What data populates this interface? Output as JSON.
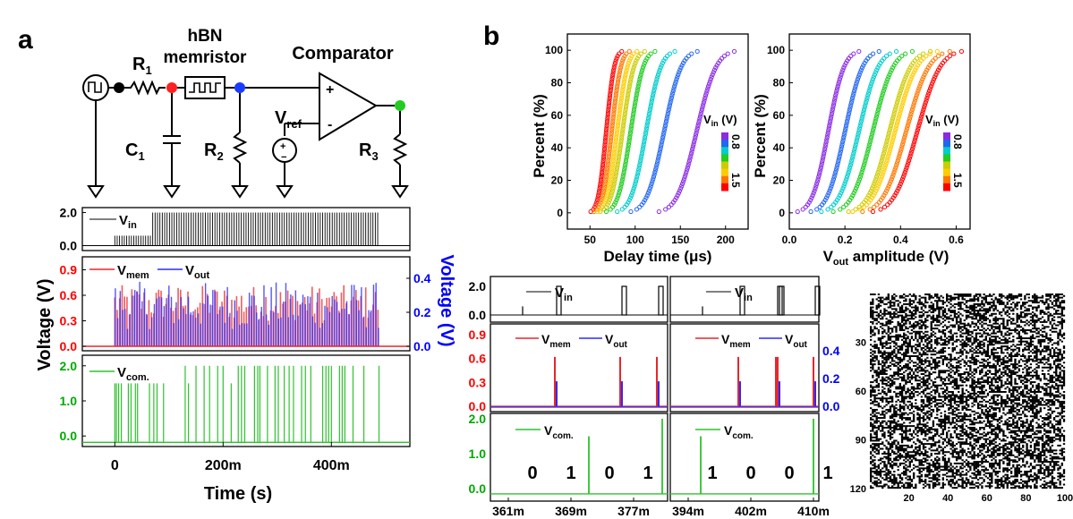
{
  "panel_labels": {
    "a": "a",
    "b": "b"
  },
  "circuit": {
    "r1": "R",
    "r1_sub": "1",
    "memristor_line1": "hBN",
    "memristor_line2": "memristor",
    "comparator": "Comparator",
    "c1": "C",
    "c1_sub": "1",
    "r2": "R",
    "r2_sub": "2",
    "vref": "V",
    "vref_sub": "ref",
    "r3": "R",
    "r3_sub": "3",
    "plus": "+",
    "minus": "-",
    "src_plus": "+",
    "src_minus": "−"
  },
  "colors": {
    "vin": "#000000",
    "vmem": "#e8262b",
    "vout": "#2b2bff",
    "vcom": "#2ec22e",
    "red_axis": "#ff0000",
    "blue_axis": "#0000ff",
    "green_axis": "#00aa00",
    "circuit_red": "#ff2020",
    "circuit_blue": "#1a3cff",
    "circuit_green": "#22cc22"
  },
  "chart_data": [
    {
      "id": "a-time-trace",
      "type": "line",
      "xlabel": "Time (s)",
      "ylabel": "Voltage (V)",
      "ylabel_right": "Voltage (V)",
      "x_ticks": [
        "0",
        "200m",
        "400m"
      ],
      "x_tick_values": [
        0,
        0.2,
        0.4
      ],
      "xlim": [
        -0.06,
        0.545
      ],
      "panels": [
        {
          "name": "vin",
          "legend": [
            {
              "label": "V",
              "sub": "in",
              "color": "#000000"
            }
          ],
          "y_ticks": [
            "0.0",
            "2.0"
          ],
          "ylim": [
            -0.3,
            2.3
          ],
          "pulse_levels": [
            {
              "from": 0,
              "to": 0.07,
              "amplitude": 0.6
            },
            {
              "from": 0.07,
              "to": 0.49,
              "amplitude": 2.0
            }
          ]
        },
        {
          "name": "vmem-vout",
          "legend": [
            {
              "label": "V",
              "sub": "mem",
              "color": "#e8262b"
            },
            {
              "label": "V",
              "sub": "out",
              "color": "#2b2bff"
            }
          ],
          "y_ticks_left": [
            "0.0",
            "0.3",
            "0.6",
            "0.9"
          ],
          "ylim_left": [
            0,
            1.0
          ],
          "y_ticks_right": [
            "0.0",
            "0.2",
            "0.4"
          ],
          "ylim_right": [
            0,
            0.5
          ],
          "vmem_range": [
            0.3,
            0.72
          ],
          "vout_range": [
            0.1,
            0.38
          ]
        },
        {
          "name": "vcom",
          "legend": [
            {
              "label": "V",
              "sub": "com.",
              "color": "#2ec22e"
            }
          ],
          "y_ticks": [
            "0.0",
            "1.0",
            "2.0"
          ],
          "ylim": [
            -0.3,
            2.3
          ],
          "baseline": -0.18,
          "pulse_times": [
            0,
            0.003,
            0.007,
            0.012,
            0.025,
            0.03,
            0.038,
            0.042,
            0.064,
            0.072,
            0.078,
            0.09,
            0.13,
            0.136,
            0.15,
            0.165,
            0.175,
            0.19,
            0.2,
            0.215,
            0.228,
            0.234,
            0.24,
            0.258,
            0.264,
            0.268,
            0.282,
            0.296,
            0.302,
            0.313,
            0.322,
            0.33,
            0.345,
            0.352,
            0.362,
            0.384,
            0.39,
            0.395,
            0.4,
            0.415,
            0.42,
            0.425,
            0.44,
            0.46,
            0.488
          ],
          "pulse_heights": [
            1.5,
            1.5,
            1.5,
            1.5,
            1.5,
            1.5,
            1.5,
            1.5,
            1.5,
            1.5,
            1.5,
            1.5,
            2.0,
            1.5,
            2.0,
            2.0,
            2.0,
            2.0,
            2.0,
            1.5,
            2.0,
            2.0,
            2.0,
            2.0,
            2.0,
            2.0,
            2.0,
            2.0,
            2.0,
            2.0,
            2.0,
            2.0,
            2.0,
            2.0,
            2.0,
            2.0,
            2.0,
            2.0,
            2.0,
            2.0,
            2.0,
            2.0,
            2.0,
            2.0,
            2.0
          ]
        }
      ]
    },
    {
      "id": "b-delay-cdf",
      "type": "scatter",
      "xlabel": "Delay time (μs)",
      "ylabel": "Percent (%)",
      "xlim": [
        25,
        225
      ],
      "ylim": [
        -10,
        110
      ],
      "x_ticks": [
        "50",
        "100",
        "150",
        "200"
      ],
      "y_ticks": [
        "0",
        "20",
        "40",
        "60",
        "80",
        "100"
      ],
      "colorbar": {
        "title": "V",
        "title_sub": "in",
        "title_unit": " (V)",
        "top_label": "0.8",
        "bottom_label": "1.5"
      },
      "series_vin": [
        1.5,
        1.4,
        1.3,
        1.2,
        1.1,
        1.0,
        0.9,
        0.8
      ],
      "series_colors": [
        "#ff0000",
        "#ff7700",
        "#ffcc00",
        "#cccc00",
        "#22cc22",
        "#00cccc",
        "#2266ee",
        "#8a2be2"
      ],
      "medians": [
        68,
        74,
        80,
        86,
        95,
        112,
        132,
        168
      ],
      "spreads": [
        7,
        8,
        9,
        10,
        11,
        13,
        15,
        17
      ]
    },
    {
      "id": "b-amplitude-cdf",
      "type": "scatter",
      "xlabel": "V",
      "xlabel_sub": "out",
      "xlabel_rest": " amplitude (V)",
      "ylabel": "Percent (%)",
      "xlim": [
        0,
        0.65
      ],
      "ylim": [
        -10,
        110
      ],
      "x_ticks": [
        "0.0",
        "0.2",
        "0.4",
        "0.6"
      ],
      "y_ticks": [
        "0",
        "20",
        "40",
        "60",
        "80",
        "100"
      ],
      "colorbar": {
        "title": "V",
        "title_sub": "in",
        "title_unit": " (V)",
        "top_label": "0.8",
        "bottom_label": "1.5"
      },
      "series_vin": [
        0.8,
        0.9,
        1.0,
        1.1,
        1.2,
        1.3,
        1.4,
        1.5
      ],
      "series_colors": [
        "#8a2be2",
        "#2266ee",
        "#00cccc",
        "#22cc22",
        "#cccc00",
        "#ffcc00",
        "#ff7700",
        "#ff0000"
      ],
      "medians": [
        0.14,
        0.2,
        0.25,
        0.3,
        0.36,
        0.38,
        0.42,
        0.46
      ],
      "spreads": [
        0.045,
        0.05,
        0.055,
        0.058,
        0.06,
        0.062,
        0.064,
        0.065
      ]
    },
    {
      "id": "b-zoom-left",
      "type": "line",
      "x_ticks": [
        "361m",
        "369m",
        "377m"
      ],
      "y_ticks_top": [
        "0.0",
        "2.0"
      ],
      "y_ticks_mid_left": [
        "0.0",
        "0.3",
        "0.6",
        "0.9"
      ],
      "y_ticks_bottom": [
        "0.0",
        "1.0",
        "2.0"
      ],
      "legend_top": {
        "label": "V",
        "sub": "in"
      },
      "legend_mid": [
        {
          "label": "V",
          "sub": "mem"
        },
        {
          "label": "V",
          "sub": "out"
        }
      ],
      "legend_bottom": {
        "label": "V",
        "sub": "com."
      },
      "bits": [
        "0",
        "1",
        "0",
        "1"
      ]
    },
    {
      "id": "b-zoom-right",
      "type": "line",
      "x_ticks": [
        "394m",
        "402m",
        "410m"
      ],
      "y_ticks_mid_right": [
        "0.0",
        "0.2",
        "0.4"
      ],
      "legend_top": {
        "label": "V",
        "sub": "in"
      },
      "legend_mid": [
        {
          "label": "V",
          "sub": "mem"
        },
        {
          "label": "V",
          "sub": "out"
        }
      ],
      "legend_bottom": {
        "label": "V",
        "sub": "com."
      },
      "bits": [
        "1",
        "0",
        "0",
        "1"
      ]
    },
    {
      "id": "b-bitmap",
      "type": "heatmap",
      "rows": 120,
      "cols": 100,
      "y_ticks": [
        "30",
        "60",
        "90",
        "120"
      ],
      "x_ticks": [
        "20",
        "40",
        "60",
        "80",
        "100"
      ],
      "colors": [
        "#000000",
        "#ffffff"
      ]
    }
  ]
}
